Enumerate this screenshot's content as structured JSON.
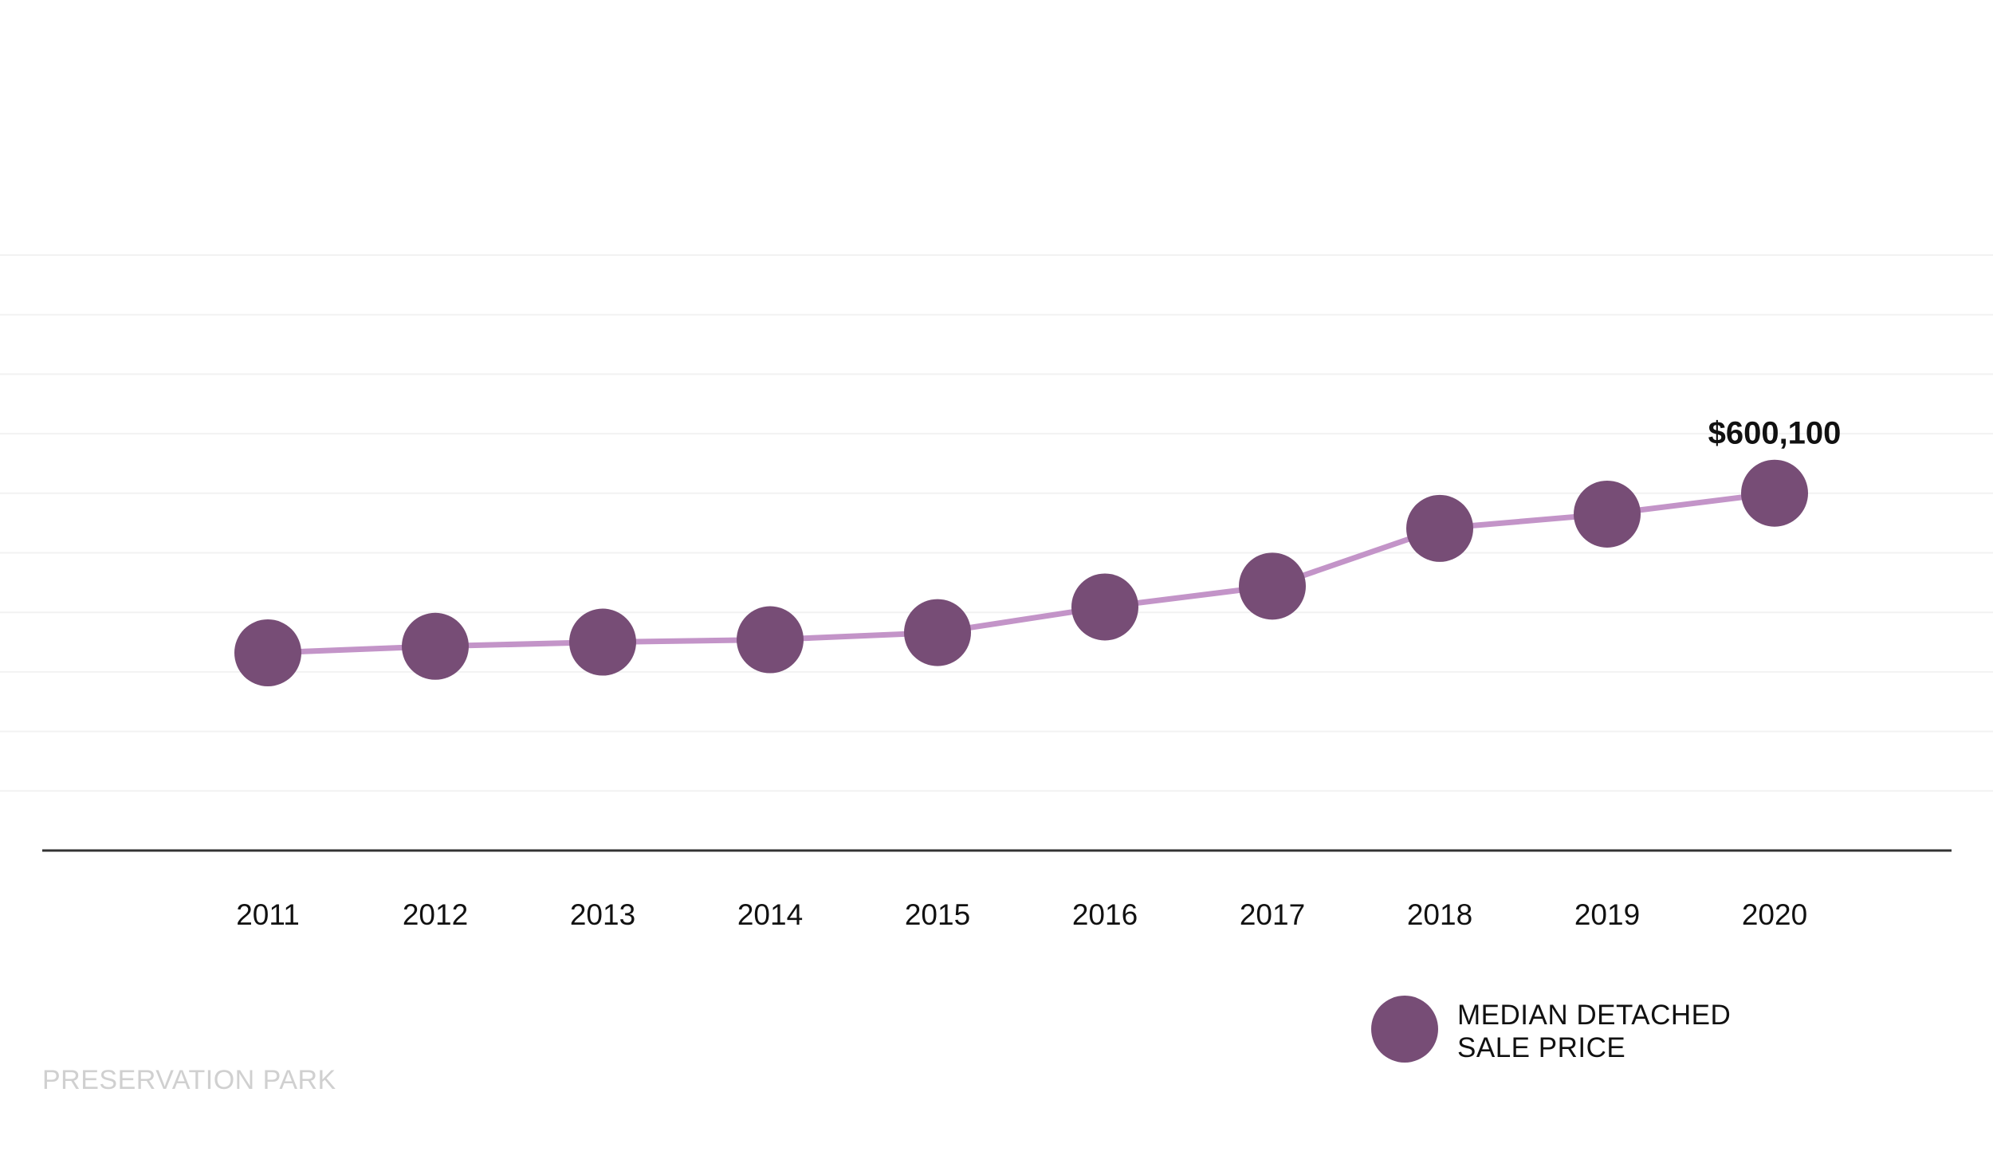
{
  "chart_data": {
    "type": "line",
    "categories": [
      "2011",
      "2012",
      "2013",
      "2014",
      "2015",
      "2016",
      "2017",
      "2018",
      "2019",
      "2020"
    ],
    "series": [
      {
        "name": "MEDIAN DETACHED SALE PRICE",
        "values": [
          332000,
          343000,
          350000,
          354000,
          366000,
          409000,
          444000,
          541000,
          565000,
          600100
        ]
      }
    ],
    "annotations": [
      {
        "category": "2020",
        "text": "$600,100"
      }
    ],
    "ylim": [
      0,
      1000000
    ],
    "grid": true,
    "legend_position": "bottom-right",
    "colors": {
      "line": "#c394c8",
      "marker": "#774d76",
      "axis": "#333333",
      "grid": "#f2f2f2"
    }
  },
  "legend": {
    "line1": "MEDIAN DETACHED",
    "line2": "SALE PRICE"
  },
  "watermark": "PRESERVATION PARK"
}
